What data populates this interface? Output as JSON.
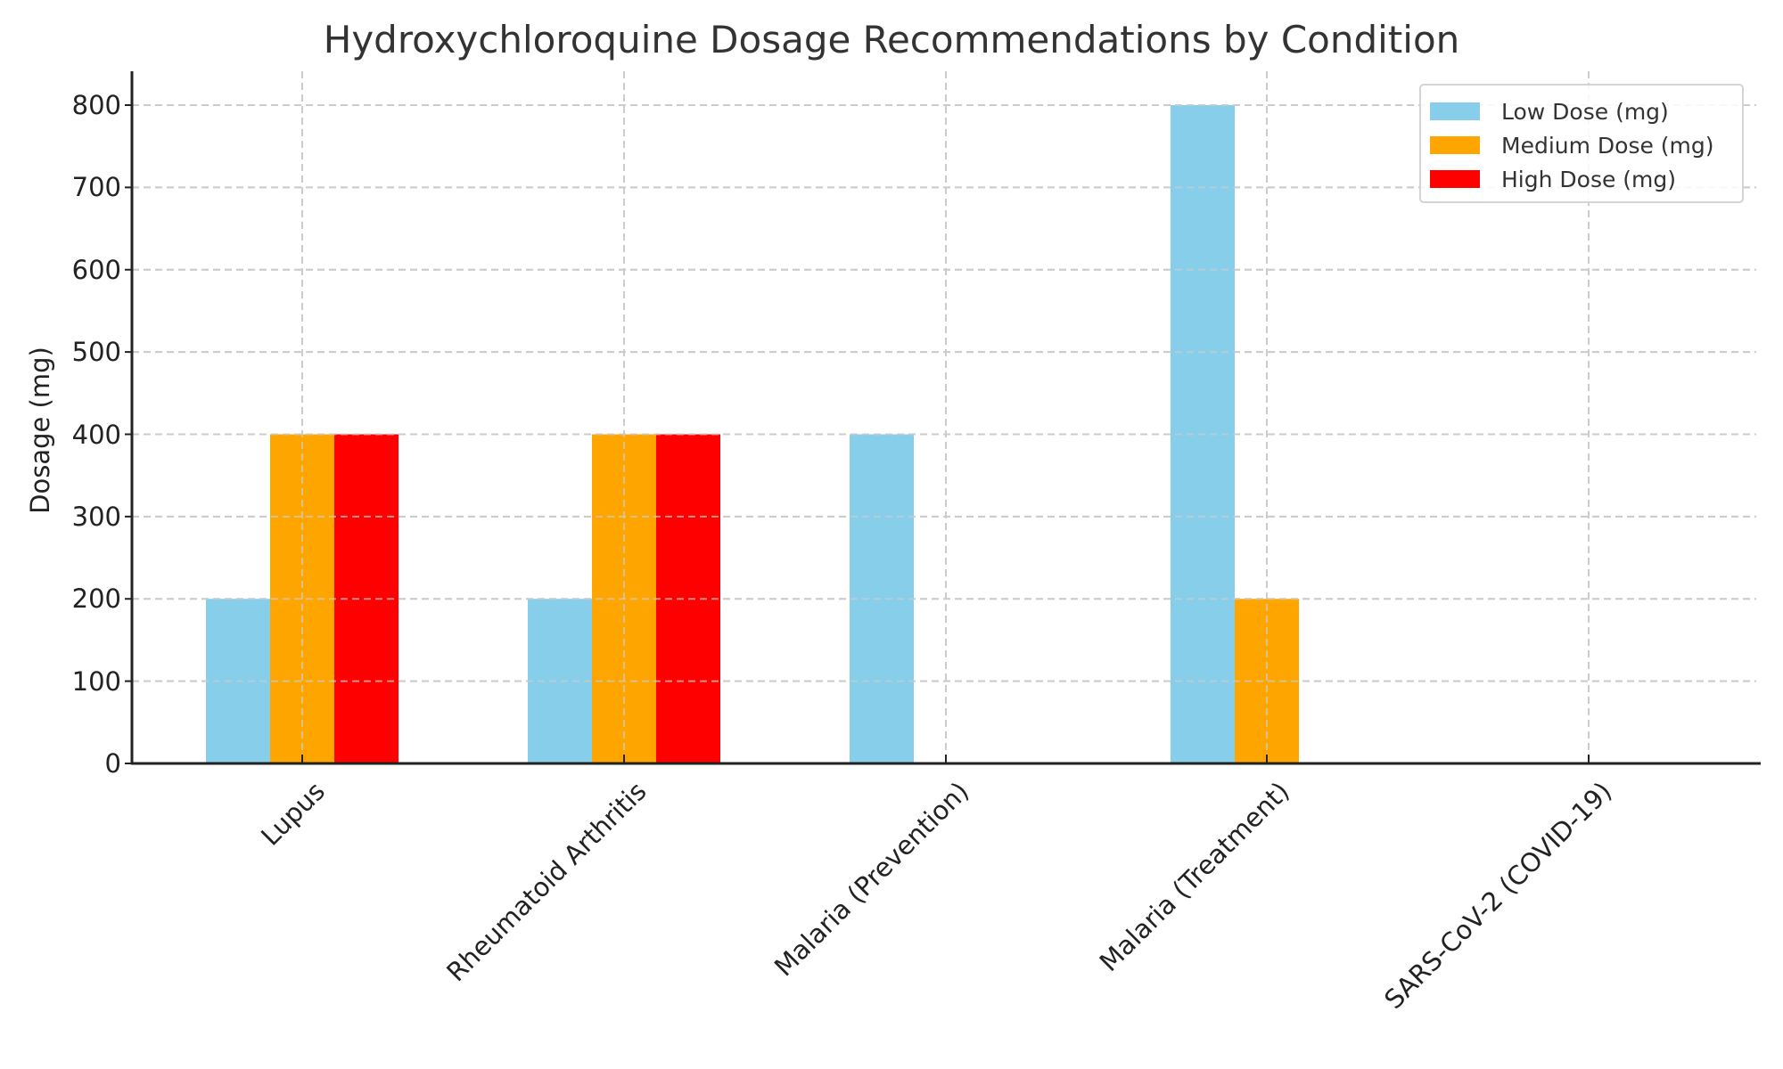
{
  "chart_data": {
    "type": "bar",
    "title": "Hydroxychloroquine Dosage Recommendations by Condition",
    "xlabel": "",
    "ylabel": "Dosage (mg)",
    "ylim": [
      0,
      840
    ],
    "yticks": [
      0,
      100,
      200,
      300,
      400,
      500,
      600,
      700,
      800
    ],
    "grid": true,
    "legend_position": "upper right",
    "categories": [
      "Lupus",
      "Rheumatoid Arthritis",
      "Malaria (Prevention)",
      "Malaria (Treatment)",
      "SARS-CoV-2 (COVID-19)"
    ],
    "series": [
      {
        "name": "Low Dose (mg)",
        "color": "#87CEEB",
        "values": [
          200,
          200,
          400,
          800,
          0
        ]
      },
      {
        "name": "Medium Dose (mg)",
        "color": "#FFA500",
        "values": [
          400,
          400,
          0,
          200,
          0
        ]
      },
      {
        "name": "High Dose (mg)",
        "color": "#FF0000",
        "values": [
          400,
          400,
          0,
          0,
          0
        ]
      }
    ]
  },
  "colors": {
    "axis": "#222222",
    "grid": "#cccccc",
    "text": "#333333"
  }
}
